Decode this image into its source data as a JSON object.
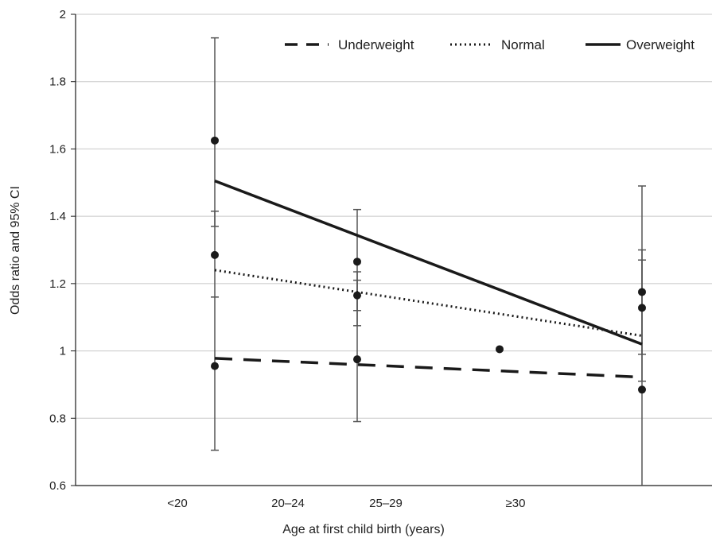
{
  "chart_data": {
    "type": "scatter",
    "title": "",
    "xlabel": "Age at first child birth (years)",
    "ylabel": "Odds ratio and 95% CI",
    "ylim": [
      0.6,
      2
    ],
    "yticks": [
      "0.6",
      "0.8",
      "1",
      "1.2",
      "1.4",
      "1.6",
      "1.8",
      "2"
    ],
    "categories": [
      "<20",
      "20–24",
      "25–29",
      "≥30"
    ],
    "grid": true,
    "legend_position": "top-right",
    "series": [
      {
        "name": "Underweight",
        "line_style": "dashed",
        "points": [
          {
            "group": "first",
            "or": 0.955,
            "ci_low": 0.705,
            "ci_high": 1.16
          },
          {
            "group": "second",
            "or": 0.975,
            "ci_low": 0.79,
            "ci_high": 1.21
          },
          {
            "group": "third",
            "or": 0.885,
            "ci_low": 0.6,
            "ci_high": 1.27
          }
        ],
        "trendline": [
          0.978,
          0.922
        ]
      },
      {
        "name": "Normal",
        "line_style": "dotted",
        "points": [
          {
            "group": "first",
            "or": 1.285,
            "ci_low": 1.16,
            "ci_high": 1.415
          },
          {
            "group": "second",
            "or": 1.165,
            "ci_low": 1.075,
            "ci_high": 1.235
          },
          {
            "group": "third",
            "or": 1.128,
            "ci_low": 0.99,
            "ci_high": 1.3
          }
        ],
        "trendline": [
          1.24,
          1.045
        ]
      },
      {
        "name": "Overweight",
        "line_style": "solid",
        "points": [
          {
            "group": "first",
            "or": 1.625,
            "ci_low": 1.37,
            "ci_high": 1.93
          },
          {
            "group": "second",
            "or": 1.265,
            "ci_low": 1.12,
            "ci_high": 1.42
          },
          {
            "group": "third",
            "or": 1.175,
            "ci_low": 0.91,
            "ci_high": 1.49
          }
        ],
        "trendline": [
          1.505,
          1.02
        ]
      }
    ],
    "extra_points": [
      {
        "x_position": "between 25–29 and ≥30",
        "value": 1.005
      }
    ],
    "colors": {
      "ink": "#1a1a1a",
      "grid": "#c8c8c8",
      "error_bar": "#555555"
    }
  }
}
